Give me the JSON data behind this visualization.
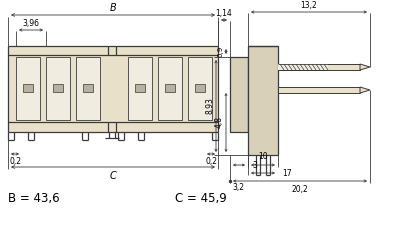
{
  "bg_color": "#ffffff",
  "line_color": "#3a3a3a",
  "dim_color": "#3a3a3a",
  "text_color": "#000000",
  "label_B_eq": "B = 43,6",
  "label_C_eq": "C = 45,9",
  "dim_396": "3,96",
  "dim_B": "B",
  "dim_114": "1,14",
  "dim_132": "13,2",
  "dim_09": "0,9",
  "dim_893": "8,93",
  "dim_48": "4,8",
  "dim_02a": "0,2",
  "dim_02b": "0,2",
  "dim_C": "C",
  "dim_3": "3",
  "dim_10": "10",
  "dim_17": "17",
  "dim_32": "3,2",
  "dim_202": "20,2",
  "fill_body": "#d8d0b8",
  "fill_light": "#e8e0c8",
  "fill_slot": "#f0ece0",
  "fill_contact": "#b8b0a0"
}
